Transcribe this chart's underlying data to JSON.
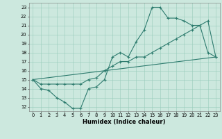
{
  "title": "",
  "xlabel": "Humidex (Indice chaleur)",
  "xlim": [
    -0.5,
    23.5
  ],
  "ylim": [
    11.5,
    23.5
  ],
  "xticks": [
    0,
    1,
    2,
    3,
    4,
    5,
    6,
    7,
    8,
    9,
    10,
    11,
    12,
    13,
    14,
    15,
    16,
    17,
    18,
    19,
    20,
    21,
    22,
    23
  ],
  "yticks": [
    12,
    13,
    14,
    15,
    16,
    17,
    18,
    19,
    20,
    21,
    22,
    23
  ],
  "bg_color": "#cce8de",
  "line_color": "#2d7b6e",
  "grid_color": "#99ccbb",
  "line1_x": [
    0,
    1,
    2,
    3,
    4,
    5,
    6,
    7,
    8,
    9,
    10,
    11,
    12,
    13,
    14,
    15,
    16,
    17,
    18,
    19,
    20,
    21,
    22,
    23
  ],
  "line1_y": [
    15,
    14,
    13.8,
    13,
    12.5,
    11.8,
    11.8,
    14,
    14.2,
    15,
    17.5,
    18,
    17.5,
    19.2,
    20.5,
    23,
    23,
    21.8,
    21.8,
    21.5,
    21,
    21,
    18,
    17.5
  ],
  "line2_x": [
    0,
    1,
    2,
    3,
    4,
    5,
    6,
    7,
    8,
    9,
    10,
    11,
    12,
    13,
    14,
    15,
    16,
    17,
    18,
    19,
    20,
    21,
    22,
    23
  ],
  "line2_y": [
    15,
    14.5,
    14.5,
    14.5,
    14.5,
    14.5,
    14.5,
    15,
    15.2,
    16,
    16.5,
    17,
    17,
    17.5,
    17.5,
    18,
    18.5,
    19,
    19.5,
    20,
    20.5,
    21,
    21.5,
    17.5
  ],
  "line3_x": [
    0,
    23
  ],
  "line3_y": [
    15,
    17.5
  ],
  "xlabel_fontsize": 6.0,
  "tick_fontsize": 4.8,
  "linewidth": 0.8,
  "markersize": 3.0
}
